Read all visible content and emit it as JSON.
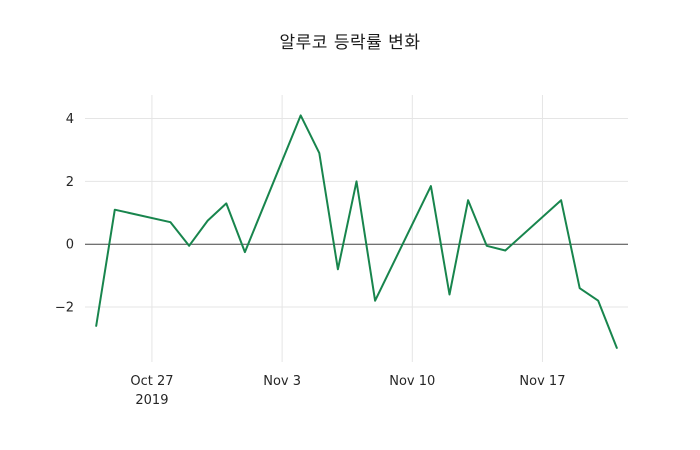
{
  "figure": {
    "background": "#ffffff"
  },
  "chart_data": {
    "type": "line",
    "title": "알루코 등락률 변화",
    "xlabel": "",
    "ylabel": "",
    "legend": "none",
    "grid": true,
    "line_color": "#18854d",
    "grid_color": "#e5e5e5",
    "zero_line_color": "#444444",
    "text_color": "#262626",
    "x": [
      "2019-10-24",
      "2019-10-25",
      "2019-10-28",
      "2019-10-29",
      "2019-10-30",
      "2019-10-31",
      "2019-11-01",
      "2019-11-04",
      "2019-11-05",
      "2019-11-06",
      "2019-11-07",
      "2019-11-08",
      "2019-11-11",
      "2019-11-12",
      "2019-11-13",
      "2019-11-14",
      "2019-11-15",
      "2019-11-18",
      "2019-11-19",
      "2019-11-20",
      "2019-11-21"
    ],
    "day_offsets": [
      0,
      1,
      4,
      5,
      6,
      7,
      8,
      11,
      12,
      13,
      14,
      15,
      18,
      19,
      20,
      21,
      22,
      25,
      26,
      27,
      28
    ],
    "values": [
      -2.6,
      1.1,
      0.7,
      -0.05,
      0.75,
      1.3,
      -0.25,
      4.1,
      2.9,
      -0.8,
      2.0,
      -1.8,
      1.85,
      -1.6,
      1.4,
      -0.05,
      -0.2,
      1.4,
      -1.4,
      -1.8,
      -3.3
    ],
    "x_ticks": [
      {
        "offset": 3,
        "label": "Oct 27",
        "sublabel": "2019"
      },
      {
        "offset": 10,
        "label": "Nov 3",
        "sublabel": ""
      },
      {
        "offset": 17,
        "label": "Nov 10",
        "sublabel": ""
      },
      {
        "offset": 24,
        "label": "Nov 17",
        "sublabel": ""
      }
    ],
    "y_ticks": [
      {
        "value": 4,
        "label": "4"
      },
      {
        "value": 2,
        "label": "2"
      },
      {
        "value": 0,
        "label": "0"
      },
      {
        "value": -2,
        "label": "−2"
      }
    ],
    "ylim": [
      -3.75,
      4.75
    ],
    "xlim_days": [
      -0.6,
      28.6
    ]
  }
}
